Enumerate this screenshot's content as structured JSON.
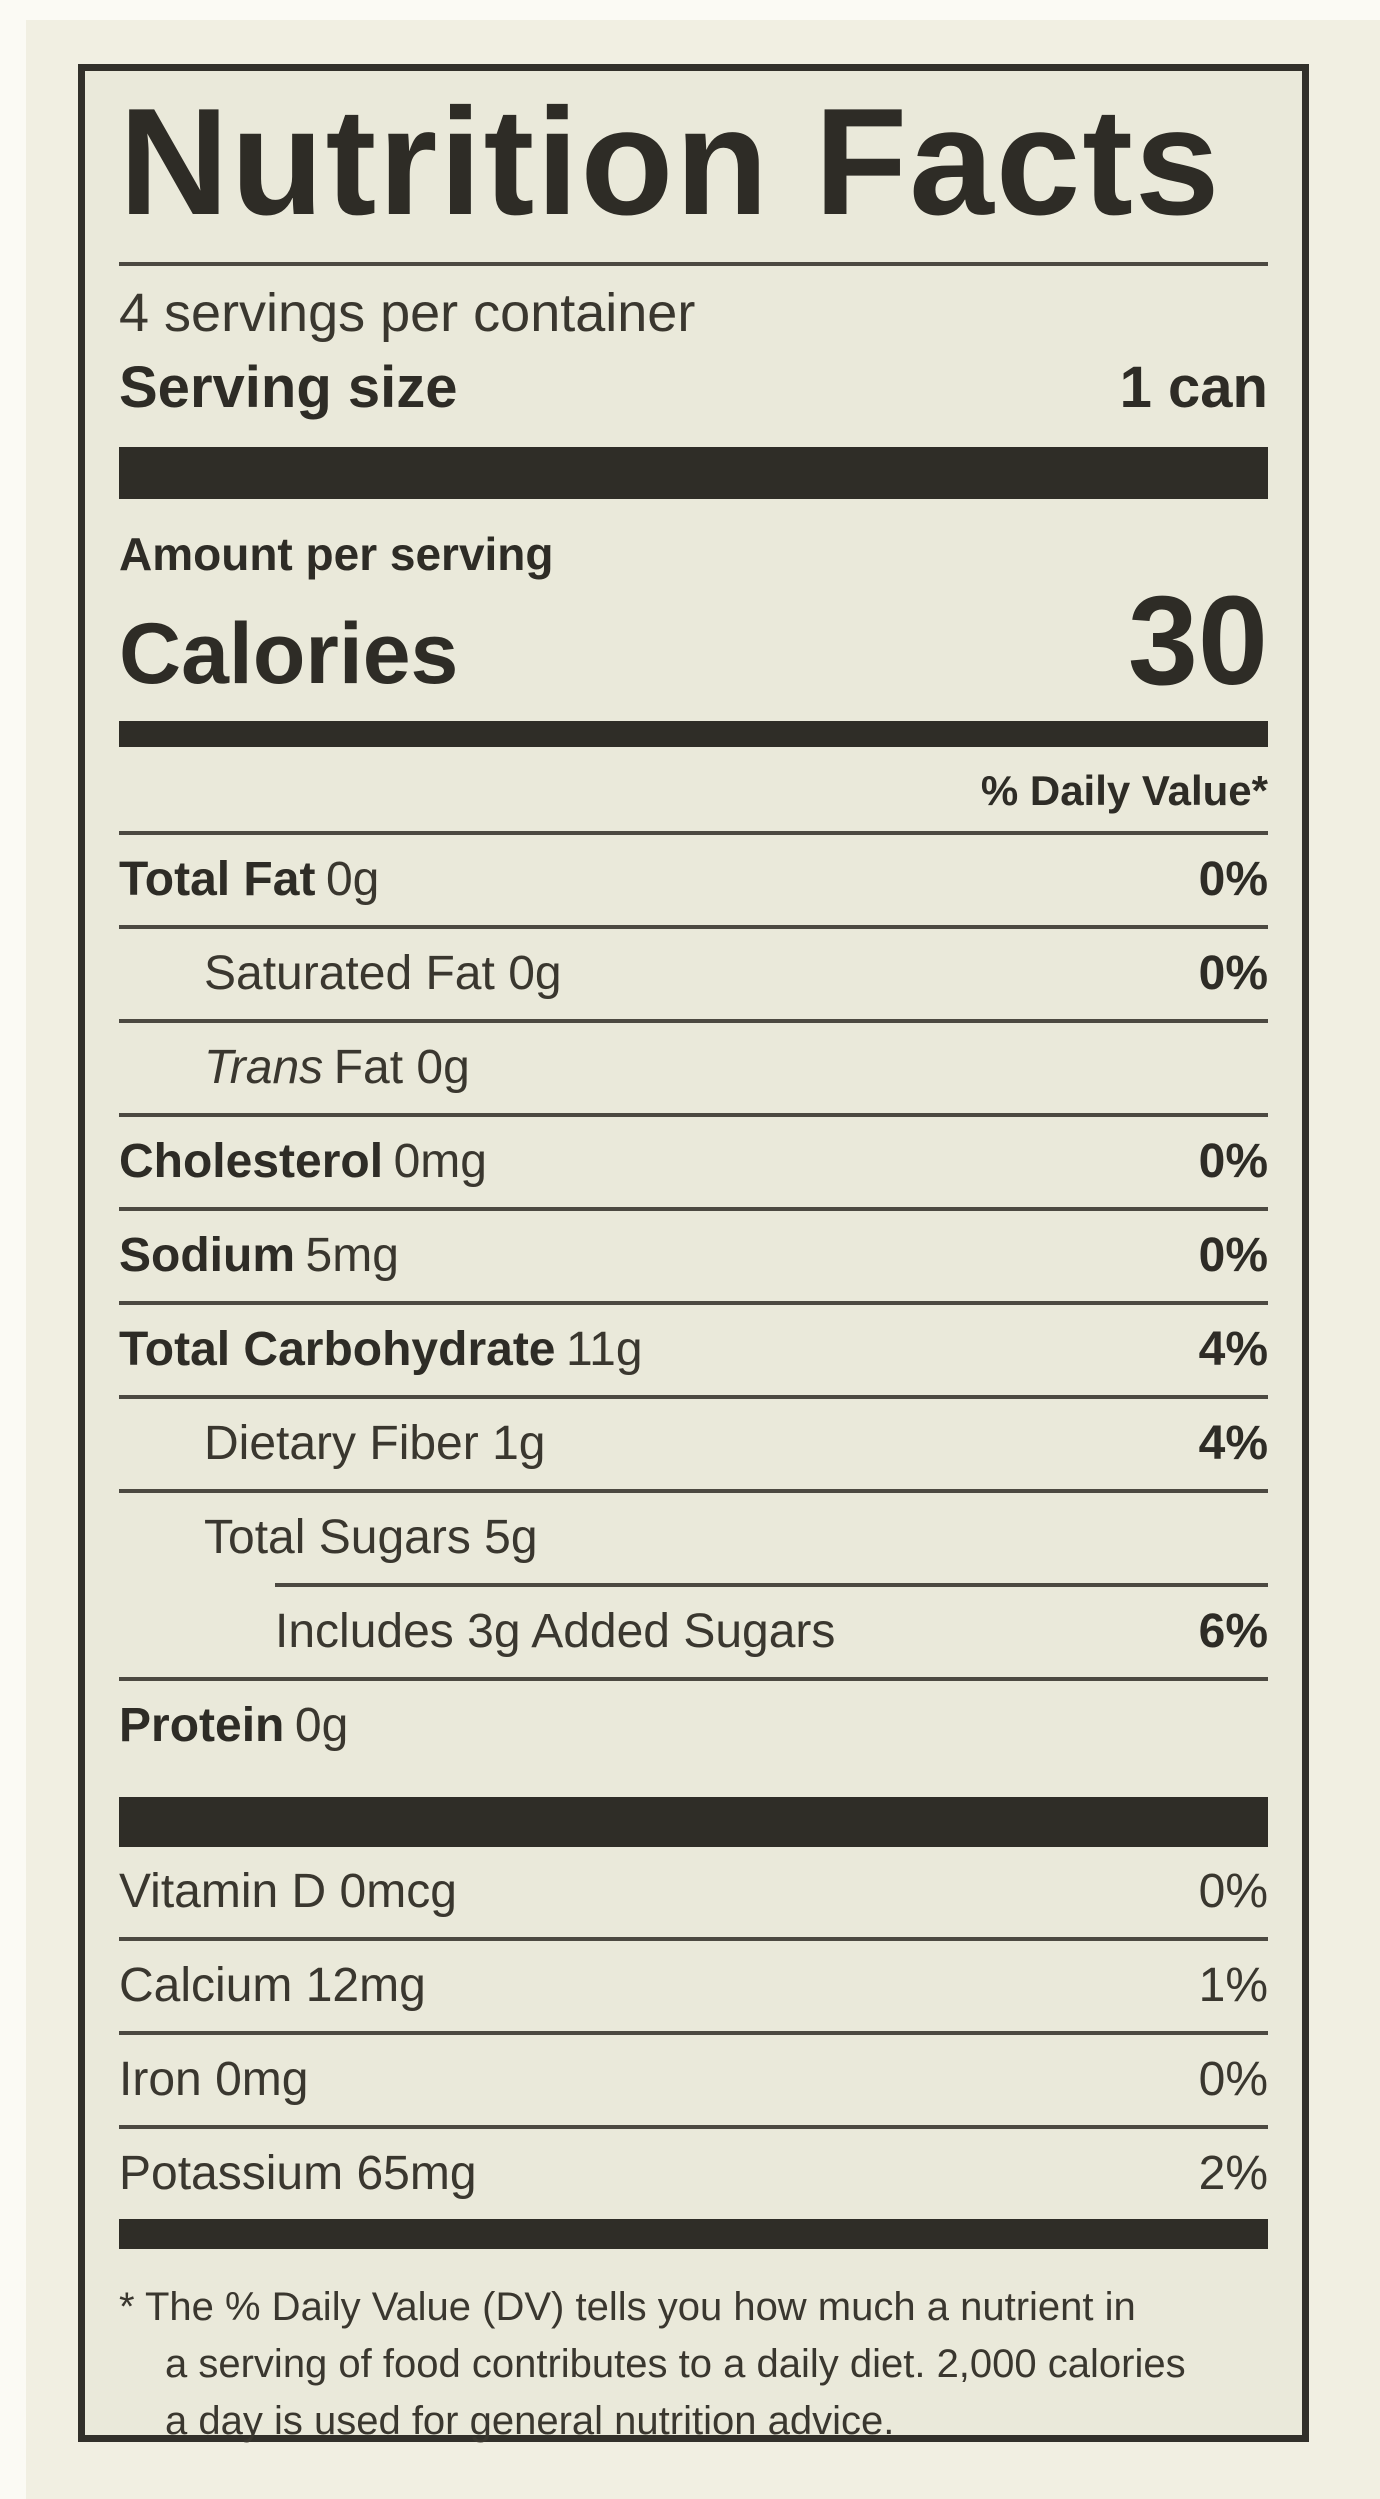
{
  "label": {
    "title": "Nutrition Facts",
    "servings_per_container": "4 servings per container",
    "serving_size": {
      "label": "Serving size",
      "value": "1 can"
    },
    "amount_per_serving": "Amount per serving",
    "calories": {
      "label": "Calories",
      "value": "30"
    },
    "daily_value_header": "% Daily Value*",
    "rows": [
      {
        "label": "Total Fat",
        "amount": "0g",
        "dv": "0%"
      },
      {
        "label": "Saturated Fat",
        "amount": "0g",
        "dv": "0%"
      },
      {
        "label_italic": "Trans",
        "label": "Fat",
        "amount": "0g",
        "dv": ""
      },
      {
        "label": "Cholesterol",
        "amount": "0mg",
        "dv": "0%"
      },
      {
        "label": "Sodium",
        "amount": "5mg",
        "dv": "0%"
      },
      {
        "label": "Total Carbohydrate",
        "amount": "11g",
        "dv": "4%"
      },
      {
        "label": "Dietary Fiber",
        "amount": "1g",
        "dv": "4%"
      },
      {
        "label": "Total Sugars",
        "amount": "5g",
        "dv": ""
      },
      {
        "label": "Includes 3g Added Sugars",
        "amount": "",
        "dv": "6%"
      },
      {
        "label": "Protein",
        "amount": "0g",
        "dv": ""
      }
    ],
    "vitamins": [
      {
        "label": "Vitamin D",
        "amount": "0mcg",
        "dv": "0%"
      },
      {
        "label": "Calcium",
        "amount": "12mg",
        "dv": "1%"
      },
      {
        "label": "Iron",
        "amount": "0mg",
        "dv": "0%"
      },
      {
        "label": "Potassium",
        "amount": "65mg",
        "dv": "2%"
      }
    ],
    "footnote_lines": [
      "* The % Daily Value (DV) tells you how much a nutrient in",
      "a serving of food contributes to a daily diet. 2,000 calories",
      "a day is used for general nutrition advice."
    ]
  },
  "colors": {
    "ink": "#2e2c26",
    "label_background": "#eae9da",
    "page_background": "#f1efe2"
  }
}
